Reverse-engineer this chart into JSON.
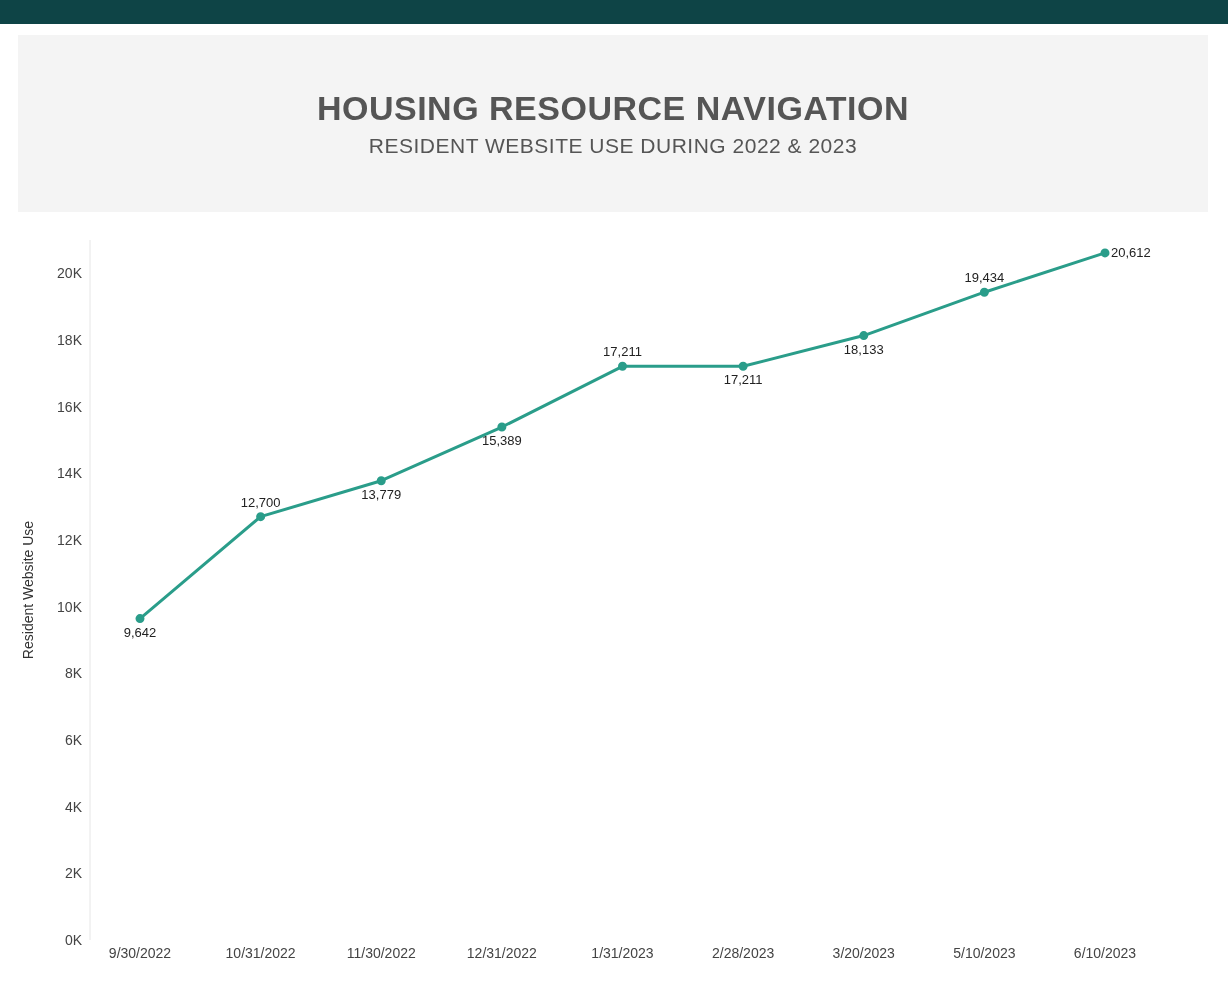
{
  "chart_data": {
    "type": "line",
    "title": "HOUSING RESOURCE NAVIGATION",
    "subtitle": "RESIDENT WEBSITE USE DURING 2022 & 2023",
    "ylabel": "Resident Website Use",
    "categories": [
      "9/30/2022",
      "10/31/2022",
      "11/30/2022",
      "12/31/2022",
      "1/31/2023",
      "2/28/2023",
      "3/20/2023",
      "5/10/2023",
      "6/10/2023"
    ],
    "series": [
      {
        "color": "#2a9d8a",
        "values": [
          9642,
          12700,
          13779,
          15389,
          17211,
          17211,
          18133,
          19434,
          20612
        ],
        "value_labels": [
          "9,642",
          "12,700",
          "13,779",
          "15,389",
          "17,211",
          "17,211",
          "18,133",
          "19,434",
          "20,612"
        ]
      }
    ],
    "ylim": [
      0,
      21000
    ],
    "yticks": [
      {
        "value": 0,
        "label": "0K"
      },
      {
        "value": 2000,
        "label": "2K"
      },
      {
        "value": 4000,
        "label": "4K"
      },
      {
        "value": 6000,
        "label": "6K"
      },
      {
        "value": 8000,
        "label": "8K"
      },
      {
        "value": 10000,
        "label": "10K"
      },
      {
        "value": 12000,
        "label": "12K"
      },
      {
        "value": 14000,
        "label": "14K"
      },
      {
        "value": 16000,
        "label": "16K"
      },
      {
        "value": 18000,
        "label": "18K"
      },
      {
        "value": 20000,
        "label": "20K"
      }
    ],
    "grid": false,
    "legend": false,
    "marker": "circle",
    "line_style": "solid"
  }
}
